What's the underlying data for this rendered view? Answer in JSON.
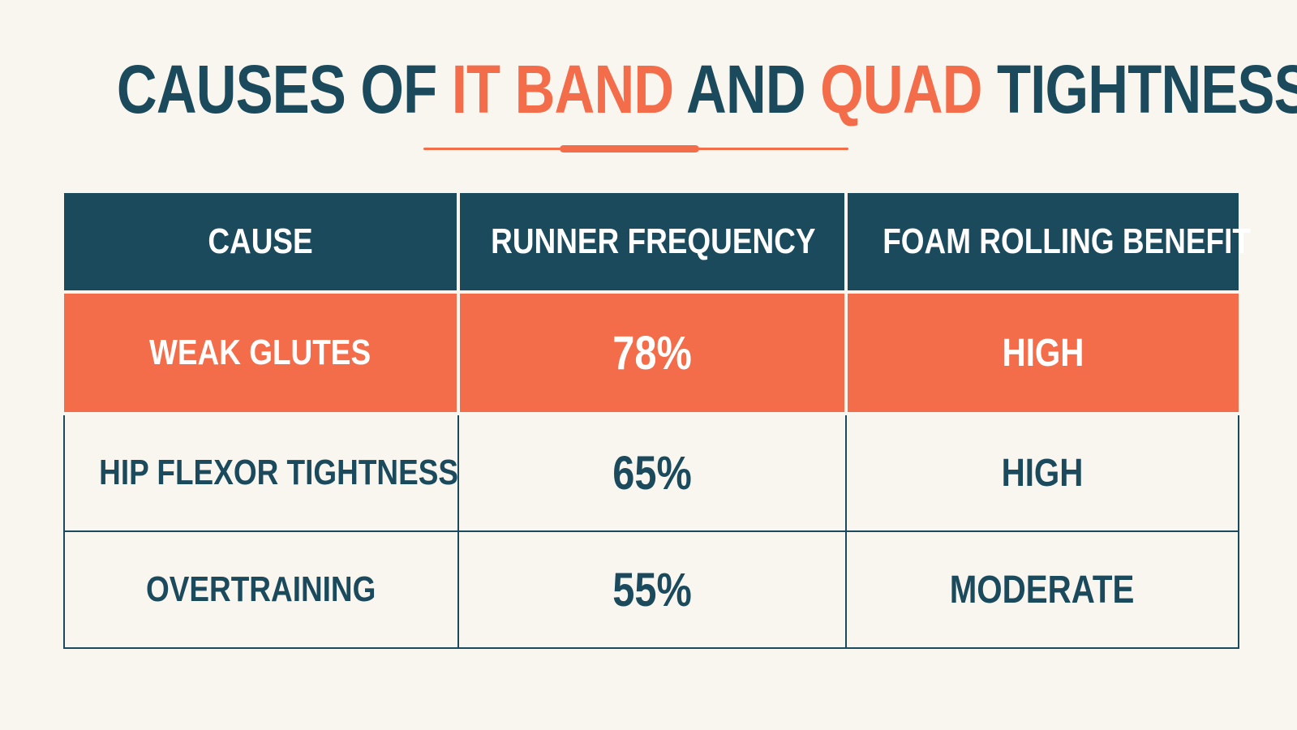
{
  "title": {
    "part1": "CAUSES OF ",
    "accent1": "IT BAND",
    "part2": " AND ",
    "accent2": "QUAD",
    "part3": " TIGHTNESS"
  },
  "colors": {
    "navy": "#1b4a5c",
    "coral": "#f46d4a",
    "background": "#f9f6f0"
  },
  "table": {
    "headers": [
      "CAUSE",
      "RUNNER FREQUENCY",
      "FOAM ROLLING BENEFIT"
    ],
    "rows": [
      {
        "cause": "WEAK GLUTES",
        "frequency": "78%",
        "benefit": "HIGH",
        "highlighted": true
      },
      {
        "cause": "HIP FLEXOR TIGHTNESS",
        "frequency": "65%",
        "benefit": "HIGH",
        "highlighted": false
      },
      {
        "cause": "OVERTRAINING",
        "frequency": "55%",
        "benefit": "MODERATE",
        "highlighted": false
      }
    ]
  }
}
